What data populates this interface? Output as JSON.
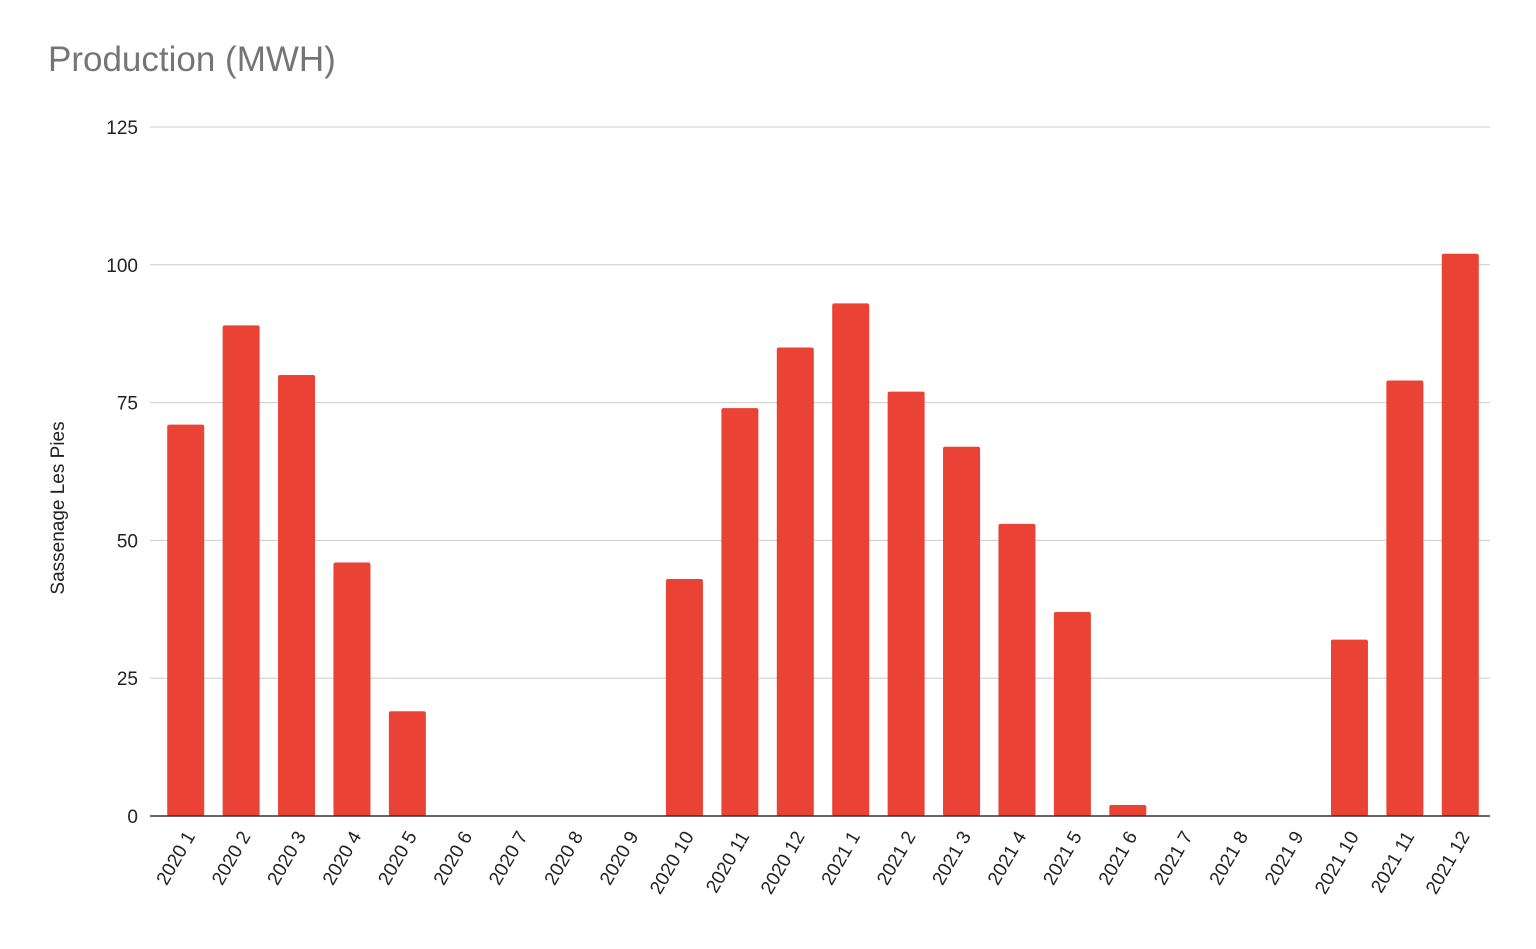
{
  "chart_data": {
    "type": "bar",
    "title": "Production (MWH)",
    "xlabel": "",
    "ylabel": "Sassenage Les Pies",
    "ylim": [
      0,
      125
    ],
    "yticks": [
      0,
      25,
      50,
      75,
      100,
      125
    ],
    "grid": true,
    "color": "#ea4335",
    "categories": [
      "2020 1",
      "2020 2",
      "2020 3",
      "2020 4",
      "2020 5",
      "2020 6",
      "2020 7",
      "2020 8",
      "2020 9",
      "2020 10",
      "2020 11",
      "2020 12",
      "2021 1",
      "2021 2",
      "2021 3",
      "2021 4",
      "2021 5",
      "2021 6",
      "2021 7",
      "2021 8",
      "2021 9",
      "2021 10",
      "2021 11",
      "2021 12"
    ],
    "values": [
      71,
      89,
      80,
      46,
      19,
      0,
      0,
      0,
      0,
      43,
      74,
      85,
      93,
      77,
      67,
      53,
      37,
      2,
      0,
      0,
      0,
      32,
      79,
      102
    ]
  }
}
